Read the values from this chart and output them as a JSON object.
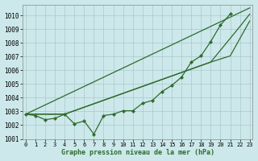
{
  "title": "Graphe pression niveau de la mer (hPa)",
  "background_color": "#cce8ea",
  "grid_color": "#aac8cc",
  "line_color": "#2d6b2d",
  "x_ticks": [
    0,
    1,
    2,
    3,
    4,
    5,
    6,
    7,
    8,
    9,
    10,
    11,
    12,
    13,
    14,
    15,
    16,
    17,
    18,
    19,
    20,
    21,
    22,
    23
  ],
  "ylim": [
    1001.0,
    1010.8
  ],
  "xlim": [
    -0.3,
    23.3
  ],
  "yticks": [
    1001,
    1002,
    1003,
    1004,
    1005,
    1006,
    1007,
    1008,
    1009,
    1010
  ],
  "series1_x": [
    0,
    1,
    2,
    3,
    4,
    5,
    6,
    7,
    8,
    9,
    10,
    11,
    12,
    13,
    14,
    15,
    16,
    17,
    18,
    19,
    20,
    21
  ],
  "series1": [
    1002.8,
    1002.7,
    1002.4,
    1002.5,
    1002.8,
    1002.1,
    1002.3,
    1001.35,
    1002.7,
    1002.8,
    1003.05,
    1003.05,
    1003.6,
    1003.8,
    1004.45,
    1004.9,
    1005.5,
    1006.6,
    1007.05,
    1008.1,
    1009.3,
    1010.1
  ],
  "series2_x": [
    0,
    23
  ],
  "series2": [
    1002.8,
    1010.55
  ],
  "series3_x": [
    0,
    4,
    19,
    22,
    23
  ],
  "series3": [
    1002.8,
    1002.8,
    1006.6,
    1009.2,
    1010.1
  ],
  "series4_x": [
    0,
    4,
    19,
    21,
    23
  ],
  "series4": [
    1002.8,
    1002.8,
    1006.6,
    1007.05,
    1009.6
  ]
}
